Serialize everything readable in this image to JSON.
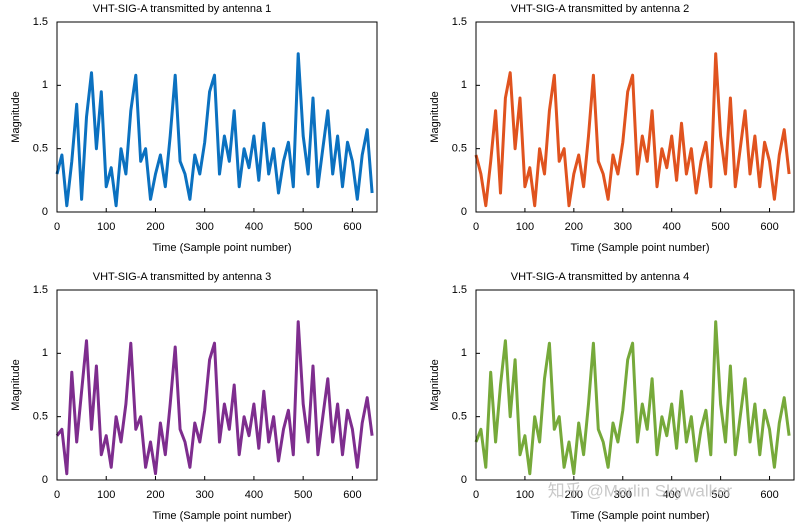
{
  "chart_data": [
    {
      "type": "line",
      "title": "VHT-SIG-A transmitted by antenna 1",
      "xlabel": "Time (Sample point number)",
      "ylabel": "Magnitude",
      "x": [
        0,
        10,
        20,
        30,
        40,
        50,
        60,
        70,
        80,
        90,
        100,
        110,
        120,
        130,
        140,
        150,
        160,
        170,
        180,
        190,
        200,
        210,
        220,
        230,
        240,
        250,
        260,
        270,
        280,
        290,
        300,
        310,
        320,
        330,
        340,
        350,
        360,
        370,
        380,
        390,
        400,
        410,
        420,
        430,
        440,
        450,
        460,
        470,
        480,
        490,
        500,
        510,
        520,
        530,
        540,
        550,
        560,
        570,
        580,
        590,
        600,
        610,
        620,
        630,
        640
      ],
      "series": [
        {
          "name": "antenna 1",
          "color": "#0b71c0",
          "values": [
            0.3,
            0.45,
            0.05,
            0.4,
            0.85,
            0.1,
            0.75,
            1.1,
            0.5,
            0.95,
            0.2,
            0.35,
            0.05,
            0.5,
            0.3,
            0.8,
            1.08,
            0.4,
            0.5,
            0.1,
            0.3,
            0.45,
            0.2,
            0.6,
            1.08,
            0.4,
            0.3,
            0.1,
            0.45,
            0.3,
            0.55,
            0.95,
            1.08,
            0.3,
            0.6,
            0.4,
            0.8,
            0.2,
            0.5,
            0.35,
            0.6,
            0.25,
            0.7,
            0.3,
            0.5,
            0.15,
            0.4,
            0.55,
            0.2,
            1.25,
            0.6,
            0.3,
            0.9,
            0.2,
            0.5,
            0.8,
            0.3,
            0.6,
            0.2,
            0.55,
            0.4,
            0.1,
            0.45,
            0.65,
            0.15
          ]
        }
      ],
      "xlim": [
        0,
        650
      ],
      "xticks": [
        0,
        100,
        200,
        300,
        400,
        500,
        600
      ],
      "ylim": [
        0,
        1.5
      ],
      "yticks": [
        0,
        0.5,
        1,
        1.5
      ]
    },
    {
      "type": "line",
      "title": "VHT-SIG-A transmitted by antenna 2",
      "xlabel": "Time (Sample point number)",
      "ylabel": "Magnitude",
      "x": [
        0,
        10,
        20,
        30,
        40,
        50,
        60,
        70,
        80,
        90,
        100,
        110,
        120,
        130,
        140,
        150,
        160,
        170,
        180,
        190,
        200,
        210,
        220,
        230,
        240,
        250,
        260,
        270,
        280,
        290,
        300,
        310,
        320,
        330,
        340,
        350,
        360,
        370,
        380,
        390,
        400,
        410,
        420,
        430,
        440,
        450,
        460,
        470,
        480,
        490,
        500,
        510,
        520,
        530,
        540,
        550,
        560,
        570,
        580,
        590,
        600,
        610,
        620,
        630,
        640
      ],
      "series": [
        {
          "name": "antenna 2",
          "color": "#e0531f",
          "values": [
            0.45,
            0.3,
            0.05,
            0.4,
            0.8,
            0.15,
            0.9,
            1.1,
            0.5,
            0.9,
            0.2,
            0.35,
            0.05,
            0.5,
            0.3,
            0.8,
            1.08,
            0.4,
            0.5,
            0.05,
            0.3,
            0.45,
            0.2,
            0.6,
            1.08,
            0.4,
            0.3,
            0.1,
            0.45,
            0.3,
            0.55,
            0.95,
            1.08,
            0.3,
            0.6,
            0.4,
            0.8,
            0.2,
            0.5,
            0.35,
            0.6,
            0.25,
            0.7,
            0.3,
            0.5,
            0.15,
            0.4,
            0.55,
            0.2,
            1.25,
            0.6,
            0.3,
            0.9,
            0.2,
            0.5,
            0.8,
            0.3,
            0.6,
            0.2,
            0.55,
            0.4,
            0.1,
            0.45,
            0.65,
            0.3
          ]
        }
      ],
      "xlim": [
        0,
        650
      ],
      "xticks": [
        0,
        100,
        200,
        300,
        400,
        500,
        600
      ],
      "ylim": [
        0,
        1.5
      ],
      "yticks": [
        0,
        0.5,
        1,
        1.5
      ]
    },
    {
      "type": "line",
      "title": "VHT-SIG-A  transmitted by antenna 3",
      "xlabel": "Time (Sample point number)",
      "ylabel": "Magnitude",
      "x": [
        0,
        10,
        20,
        30,
        40,
        50,
        60,
        70,
        80,
        90,
        100,
        110,
        120,
        130,
        140,
        150,
        160,
        170,
        180,
        190,
        200,
        210,
        220,
        230,
        240,
        250,
        260,
        270,
        280,
        290,
        300,
        310,
        320,
        330,
        340,
        350,
        360,
        370,
        380,
        390,
        400,
        410,
        420,
        430,
        440,
        450,
        460,
        470,
        480,
        490,
        500,
        510,
        520,
        530,
        540,
        550,
        560,
        570,
        580,
        590,
        600,
        610,
        620,
        630,
        640
      ],
      "series": [
        {
          "name": "antenna 3",
          "color": "#7e2d8e",
          "values": [
            0.35,
            0.4,
            0.05,
            0.85,
            0.3,
            0.7,
            1.1,
            0.4,
            0.9,
            0.2,
            0.35,
            0.1,
            0.5,
            0.3,
            0.6,
            1.08,
            0.4,
            0.5,
            0.1,
            0.3,
            0.05,
            0.45,
            0.2,
            0.6,
            1.05,
            0.4,
            0.3,
            0.1,
            0.45,
            0.3,
            0.55,
            0.95,
            1.08,
            0.3,
            0.6,
            0.4,
            0.75,
            0.2,
            0.5,
            0.35,
            0.6,
            0.25,
            0.7,
            0.3,
            0.5,
            0.15,
            0.4,
            0.55,
            0.2,
            1.25,
            0.6,
            0.3,
            0.9,
            0.2,
            0.5,
            0.8,
            0.3,
            0.6,
            0.2,
            0.55,
            0.4,
            0.1,
            0.45,
            0.65,
            0.35
          ]
        }
      ],
      "xlim": [
        0,
        650
      ],
      "xticks": [
        0,
        100,
        200,
        300,
        400,
        500,
        600
      ],
      "ylim": [
        0,
        1.5
      ],
      "yticks": [
        0,
        0.5,
        1,
        1.5
      ]
    },
    {
      "type": "line",
      "title": "VHT-SIG-A  transmitted by antenna 4",
      "xlabel": "Time (Sample point number)",
      "ylabel": "Magnitude",
      "x": [
        0,
        10,
        20,
        30,
        40,
        50,
        60,
        70,
        80,
        90,
        100,
        110,
        120,
        130,
        140,
        150,
        160,
        170,
        180,
        190,
        200,
        210,
        220,
        230,
        240,
        250,
        260,
        270,
        280,
        290,
        300,
        310,
        320,
        330,
        340,
        350,
        360,
        370,
        380,
        390,
        400,
        410,
        420,
        430,
        440,
        450,
        460,
        470,
        480,
        490,
        500,
        510,
        520,
        530,
        540,
        550,
        560,
        570,
        580,
        590,
        600,
        610,
        620,
        630,
        640
      ],
      "series": [
        {
          "name": "antenna 4",
          "color": "#76a93a",
          "values": [
            0.3,
            0.4,
            0.1,
            0.85,
            0.3,
            0.75,
            1.1,
            0.5,
            0.95,
            0.2,
            0.35,
            0.05,
            0.5,
            0.3,
            0.8,
            1.08,
            0.4,
            0.5,
            0.1,
            0.3,
            0.05,
            0.45,
            0.2,
            0.6,
            1.08,
            0.4,
            0.3,
            0.1,
            0.45,
            0.3,
            0.55,
            0.95,
            1.08,
            0.3,
            0.6,
            0.4,
            0.8,
            0.2,
            0.5,
            0.35,
            0.6,
            0.25,
            0.7,
            0.3,
            0.5,
            0.15,
            0.4,
            0.55,
            0.2,
            1.25,
            0.6,
            0.3,
            0.9,
            0.2,
            0.5,
            0.8,
            0.3,
            0.6,
            0.2,
            0.55,
            0.4,
            0.1,
            0.45,
            0.65,
            0.35
          ]
        }
      ],
      "xlim": [
        0,
        650
      ],
      "xticks": [
        0,
        100,
        200,
        300,
        400,
        500,
        600
      ],
      "ylim": [
        0,
        1.5
      ],
      "yticks": [
        0,
        0.5,
        1,
        1.5
      ]
    }
  ],
  "watermark": "知乎 @Merlin Skywalker"
}
